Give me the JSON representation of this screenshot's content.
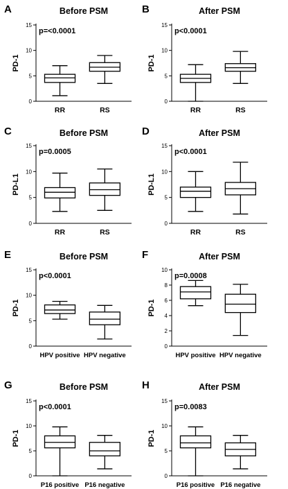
{
  "chart_data": [
    {
      "type": "boxplot",
      "letter": "A",
      "title": "Before PSM",
      "pvalue": "p=<0.0001",
      "ylabel": "PD-1",
      "ylim": [
        0,
        15
      ],
      "yticks": [
        0,
        5,
        10,
        15
      ],
      "categories": [
        "RR",
        "RS"
      ],
      "boxes": [
        {
          "min": 1.1,
          "q1": 3.7,
          "median": 4.6,
          "q3": 5.3,
          "max": 7.0
        },
        {
          "min": 3.5,
          "q1": 5.9,
          "median": 6.7,
          "q3": 7.6,
          "max": 9.0
        }
      ]
    },
    {
      "type": "boxplot",
      "letter": "B",
      "title": "After PSM",
      "pvalue": "p<0.0001",
      "ylabel": "PD-1",
      "ylim": [
        0,
        15
      ],
      "yticks": [
        0,
        5,
        10,
        15
      ],
      "categories": [
        "RR",
        "RS"
      ],
      "boxes": [
        {
          "min": 0,
          "q1": 3.7,
          "median": 4.5,
          "q3": 5.3,
          "max": 7.2
        },
        {
          "min": 3.5,
          "q1": 5.9,
          "median": 6.6,
          "q3": 7.4,
          "max": 9.8
        }
      ]
    },
    {
      "type": "boxplot",
      "letter": "C",
      "title": "Before PSM",
      "pvalue": "p=0.0005",
      "ylabel": "PD-L1",
      "ylim": [
        0,
        15
      ],
      "yticks": [
        0,
        5,
        10,
        15
      ],
      "categories": [
        "RR",
        "RS"
      ],
      "boxes": [
        {
          "min": 2.3,
          "q1": 4.9,
          "median": 6.0,
          "q3": 6.9,
          "max": 9.7
        },
        {
          "min": 2.5,
          "q1": 5.4,
          "median": 6.5,
          "q3": 7.8,
          "max": 10.5
        }
      ]
    },
    {
      "type": "boxplot",
      "letter": "D",
      "title": "After PSM",
      "pvalue": "p<0.0001",
      "ylabel": "PD-L1",
      "ylim": [
        0,
        15
      ],
      "yticks": [
        0,
        5,
        10,
        15
      ],
      "categories": [
        "RR",
        "RS"
      ],
      "boxes": [
        {
          "min": 2.3,
          "q1": 5.0,
          "median": 6.2,
          "q3": 7.0,
          "max": 10.0
        },
        {
          "min": 1.8,
          "q1": 5.5,
          "median": 6.7,
          "q3": 7.9,
          "max": 11.8
        }
      ]
    },
    {
      "type": "boxplot",
      "letter": "E",
      "title": "Before PSM",
      "pvalue": "p<0.0001",
      "ylabel": "PD-1",
      "ylim": [
        0,
        15
      ],
      "yticks": [
        0,
        5,
        10,
        15
      ],
      "categories": [
        "HPV positive",
        "HPV negative"
      ],
      "boxes": [
        {
          "min": 5.3,
          "q1": 6.4,
          "median": 7.1,
          "q3": 8.1,
          "max": 8.8
        },
        {
          "min": 1.4,
          "q1": 4.2,
          "median": 5.3,
          "q3": 6.7,
          "max": 8.0
        }
      ]
    },
    {
      "type": "boxplot",
      "letter": "F",
      "title": "After PSM",
      "pvalue": "p=0.0008",
      "ylabel": "PD-1",
      "ylim": [
        0,
        10
      ],
      "yticks": [
        0,
        2,
        4,
        6,
        8,
        10
      ],
      "categories": [
        "HPV positive",
        "HPV negative"
      ],
      "boxes": [
        {
          "min": 5.3,
          "q1": 6.2,
          "median": 7.1,
          "q3": 7.8,
          "max": 8.6
        },
        {
          "min": 1.4,
          "q1": 4.4,
          "median": 5.5,
          "q3": 6.8,
          "max": 8.1
        }
      ]
    },
    {
      "type": "boxplot",
      "letter": "G",
      "title": "Before PSM",
      "pvalue": "p<0.0001",
      "ylabel": "PD-1",
      "ylim": [
        0,
        15
      ],
      "yticks": [
        0,
        5,
        10,
        15
      ],
      "categories": [
        "P16 positive",
        "P16 negative"
      ],
      "boxes": [
        {
          "min": 0,
          "q1": 5.6,
          "median": 6.7,
          "q3": 8.0,
          "max": 9.8
        },
        {
          "min": 1.4,
          "q1": 4.0,
          "median": 5.0,
          "q3": 6.7,
          "max": 8.1
        }
      ]
    },
    {
      "type": "boxplot",
      "letter": "H",
      "title": "After PSM",
      "pvalue": "p=0.0083",
      "ylabel": "PD-1",
      "ylim": [
        0,
        15
      ],
      "yticks": [
        0,
        5,
        10,
        15
      ],
      "categories": [
        "P16 positive",
        "P16 negative"
      ],
      "boxes": [
        {
          "min": 0,
          "q1": 5.6,
          "median": 6.6,
          "q3": 8.0,
          "max": 9.8
        },
        {
          "min": 1.4,
          "q1": 4.0,
          "median": 5.3,
          "q3": 6.6,
          "max": 8.1
        }
      ]
    }
  ]
}
